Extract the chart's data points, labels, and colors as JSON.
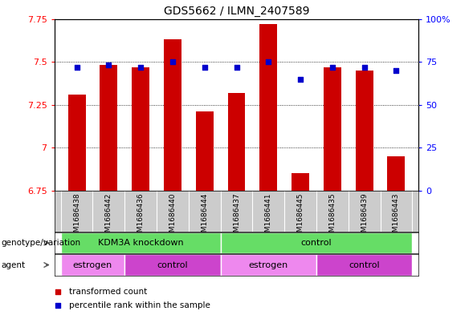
{
  "title": "GDS5662 / ILMN_2407589",
  "samples": [
    "GSM1686438",
    "GSM1686442",
    "GSM1686436",
    "GSM1686440",
    "GSM1686444",
    "GSM1686437",
    "GSM1686441",
    "GSM1686445",
    "GSM1686435",
    "GSM1686439",
    "GSM1686443"
  ],
  "transformed_counts": [
    7.31,
    7.48,
    7.47,
    7.63,
    7.21,
    7.32,
    7.72,
    6.85,
    7.47,
    7.45,
    6.95
  ],
  "percentile_ranks": [
    72,
    73,
    72,
    75,
    72,
    72,
    75,
    65,
    72,
    72,
    70
  ],
  "ylim_left": [
    6.75,
    7.75
  ],
  "ylim_right": [
    0,
    100
  ],
  "yticks_left": [
    6.75,
    7.0,
    7.25,
    7.5,
    7.75
  ],
  "yticks_right": [
    0,
    25,
    50,
    75,
    100
  ],
  "ytick_labels_left": [
    "6.75",
    "7",
    "7.25",
    "7.5",
    "7.75"
  ],
  "ytick_labels_right": [
    "0",
    "25",
    "50",
    "75",
    "100%"
  ],
  "bar_color": "#cc0000",
  "dot_color": "#0000cc",
  "bar_width": 0.55,
  "background_color": "#ffffff",
  "sample_bg_color": "#cccccc",
  "geno_groups": [
    {
      "label": "KDM3A knockdown",
      "start": 0,
      "end": 5,
      "color": "#66dd66"
    },
    {
      "label": "control",
      "start": 5,
      "end": 11,
      "color": "#66dd66"
    }
  ],
  "agent_groups": [
    {
      "label": "estrogen",
      "start": 0,
      "end": 2,
      "color": "#ee88ee"
    },
    {
      "label": "control",
      "start": 2,
      "end": 5,
      "color": "#cc44cc"
    },
    {
      "label": "estrogen",
      "start": 5,
      "end": 8,
      "color": "#ee88ee"
    },
    {
      "label": "control",
      "start": 8,
      "end": 11,
      "color": "#cc44cc"
    }
  ]
}
